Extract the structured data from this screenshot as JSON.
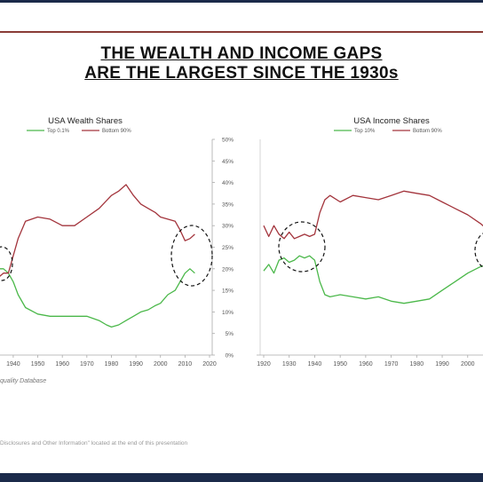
{
  "page": {
    "title_line1": "THE WEALTH AND INCOME GAPS",
    "title_line2": "ARE THE LARGEST SINCE THE 1930s",
    "source_note": "quality Database",
    "footer": "Disclosures and Other Information\" located at the end of this presentation"
  },
  "colors": {
    "green": "#4bb84a",
    "red": "#a3343c",
    "axis": "#aaaaaa",
    "tick_text": "#555555",
    "rule": "#8a3d36",
    "navy": "#1b2a4a"
  },
  "chart_data": [
    {
      "type": "line",
      "title": "USA Wealth Shares",
      "ylim": [
        0,
        50
      ],
      "y_unit": "%",
      "y_ticks": [
        "0%",
        "5%",
        "10%",
        "15%",
        "20%",
        "25%",
        "30%",
        "35%",
        "40%",
        "45%",
        "50%"
      ],
      "xlim": [
        1930,
        2020
      ],
      "x_ticks": [
        "1940",
        "1950",
        "1960",
        "1970",
        "1980",
        "1990",
        "2000",
        "2010",
        "2020"
      ],
      "legend_position": "top",
      "series": [
        {
          "name": "Top 0.1%",
          "color": "#4bb84a",
          "x": [
            1930,
            1934,
            1936,
            1938,
            1940,
            1942,
            1945,
            1950,
            1955,
            1960,
            1965,
            1970,
            1975,
            1978,
            1980,
            1983,
            1986,
            1989,
            1992,
            1995,
            1998,
            2000,
            2003,
            2006,
            2008,
            2010,
            2012,
            2014
          ],
          "y": [
            22,
            20,
            20,
            19,
            17,
            14,
            11,
            9.5,
            9,
            9,
            9,
            9,
            8,
            7,
            6.5,
            7,
            8,
            9,
            10,
            10.5,
            11.5,
            12,
            14,
            15,
            17,
            19,
            20,
            19
          ]
        },
        {
          "name": "Bottom 90%",
          "color": "#a3343c",
          "x": [
            1930,
            1934,
            1936,
            1938,
            1940,
            1942,
            1945,
            1950,
            1955,
            1960,
            1965,
            1970,
            1975,
            1980,
            1983,
            1986,
            1989,
            1992,
            1995,
            1998,
            2000,
            2003,
            2006,
            2008,
            2010,
            2012,
            2014
          ],
          "y": [
            16,
            18,
            19,
            19,
            23,
            27,
            31,
            32,
            31.5,
            30,
            30,
            32,
            34,
            37,
            38,
            39.5,
            37,
            35,
            34,
            33,
            32,
            31.5,
            31,
            29,
            26.5,
            27,
            28
          ]
        }
      ]
    },
    {
      "type": "line",
      "title": "USA Income Shares",
      "ylim": [
        0,
        50
      ],
      "xlim": [
        1920,
        2010
      ],
      "x_ticks": [
        "1920",
        "1930",
        "1940",
        "1950",
        "1960",
        "1970",
        "1980",
        "1990",
        "2000",
        "2"
      ],
      "legend_position": "top",
      "series": [
        {
          "name": "Top 10%",
          "color": "#4bb84a",
          "x": [
            1920,
            1922,
            1924,
            1926,
            1928,
            1930,
            1932,
            1934,
            1936,
            1938,
            1940,
            1942,
            1944,
            1946,
            1950,
            1955,
            1960,
            1965,
            1970,
            1975,
            1980,
            1985,
            1990,
            1995,
            2000,
            2005,
            2008,
            2010
          ],
          "y": [
            19.5,
            21,
            19,
            22,
            22.5,
            21.5,
            22,
            23,
            22.5,
            23,
            22,
            17,
            14,
            13.5,
            14,
            13.5,
            13,
            13.5,
            12.5,
            12,
            12.5,
            13,
            15,
            17,
            19,
            20.5,
            21,
            22
          ]
        },
        {
          "name": "Bottom 90%",
          "color": "#a3343c",
          "x": [
            1920,
            1922,
            1924,
            1926,
            1928,
            1930,
            1932,
            1934,
            1936,
            1938,
            1940,
            1942,
            1944,
            1946,
            1950,
            1955,
            1960,
            1965,
            1970,
            1975,
            1980,
            1985,
            1990,
            1995,
            2000,
            2005,
            2008,
            2010
          ],
          "y": [
            30,
            27.5,
            30,
            28,
            27,
            28.5,
            27,
            27.5,
            28,
            27.5,
            28,
            33,
            36,
            37,
            35.5,
            37,
            36.5,
            36,
            37,
            38,
            37.5,
            37,
            35.5,
            34,
            32.5,
            30.5,
            29,
            28
          ]
        }
      ]
    }
  ]
}
